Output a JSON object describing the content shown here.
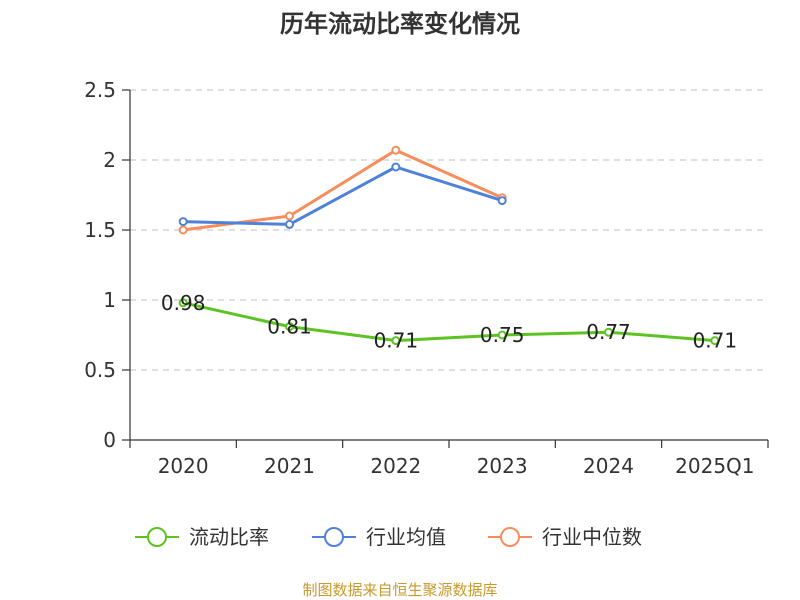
{
  "chart_data": {
    "type": "line",
    "title": "历年流动比率变化情况",
    "categories": [
      "2020",
      "2021",
      "2022",
      "2023",
      "2024",
      "2025Q1"
    ],
    "y_ticks": [
      "0",
      "0.5",
      "1",
      "1.5",
      "2",
      "2.5"
    ],
    "ylim": [
      0,
      2.5
    ],
    "grid": true,
    "legend_position": "bottom",
    "series": [
      {
        "name": "流动比率",
        "color": "#5cc322",
        "values": [
          0.98,
          0.81,
          0.71,
          0.75,
          0.77,
          0.71
        ],
        "labels": [
          "0.98",
          "0.81",
          "0.71",
          "0.75",
          "0.77",
          "0.71"
        ]
      },
      {
        "name": "行业均值",
        "color": "#4f81d9",
        "values": [
          1.56,
          1.54,
          1.95,
          1.71,
          null,
          null
        ]
      },
      {
        "name": "行业中位数",
        "color": "#f78c5c",
        "values": [
          1.5,
          1.6,
          2.07,
          1.73,
          null,
          null
        ]
      }
    ]
  },
  "source": {
    "text": "制图数据来自恒生聚源数据库",
    "color": "#c89a2c"
  }
}
